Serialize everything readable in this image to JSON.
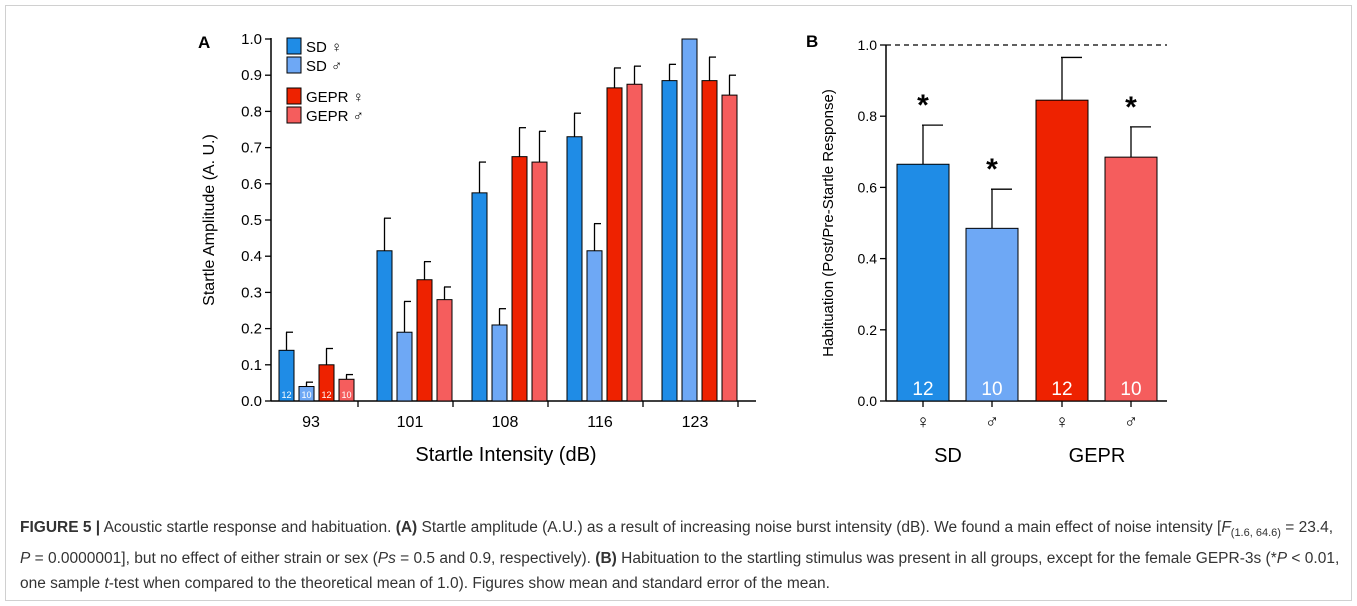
{
  "chart_data": [
    {
      "panel_label": "A",
      "type": "bar",
      "xlabel": "Startle Intensity (dB)",
      "ylabel": "Startle Amplitude (A. U.)",
      "ylim": [
        0,
        1.0
      ],
      "yticks": [
        "0.0",
        "0.1",
        "0.2",
        "0.3",
        "0.4",
        "0.5",
        "0.6",
        "0.7",
        "0.8",
        "0.9",
        "1.0"
      ],
      "categories": [
        "93",
        "101",
        "108",
        "116",
        "123"
      ],
      "legend_position": "top-left",
      "series": [
        {
          "name": "SD ♀",
          "color": "#1f8ce6",
          "values": [
            0.14,
            0.415,
            0.575,
            0.73,
            0.885
          ],
          "errors": [
            0.05,
            0.09,
            0.085,
            0.065,
            0.045
          ],
          "n": "12"
        },
        {
          "name": "SD ♂",
          "color": "#6ea8f5",
          "values": [
            0.04,
            0.19,
            0.21,
            0.415,
            1.0
          ],
          "errors": [
            0.012,
            0.085,
            0.045,
            0.075,
            0.0
          ],
          "n": "10"
        },
        {
          "name": "GEPR ♀",
          "color": "#ee2200",
          "values": [
            0.1,
            0.335,
            0.675,
            0.865,
            0.885
          ],
          "errors": [
            0.045,
            0.05,
            0.08,
            0.055,
            0.065
          ],
          "n": "12"
        },
        {
          "name": "GEPR ♂",
          "color": "#f55d5d",
          "values": [
            0.06,
            0.28,
            0.66,
            0.875,
            0.845
          ],
          "errors": [
            0.013,
            0.035,
            0.085,
            0.05,
            0.055
          ],
          "n": "10"
        }
      ]
    },
    {
      "panel_label": "B",
      "type": "bar",
      "ylabel": "Habituation (Post/Pre-Startle Response)",
      "ylim": [
        0,
        1.0
      ],
      "yticks": [
        "0.0",
        "0.2",
        "0.4",
        "0.6",
        "0.8",
        "1.0"
      ],
      "reference_line": 1.0,
      "categories": [
        "♀",
        "♂",
        "♀",
        "♂"
      ],
      "groups": [
        "SD",
        "GEPR"
      ],
      "colors": [
        "#1f8ce6",
        "#6ea8f5",
        "#ee2200",
        "#f55d5d"
      ],
      "values": [
        0.665,
        0.485,
        0.845,
        0.685
      ],
      "errors": [
        0.11,
        0.11,
        0.12,
        0.085
      ],
      "n": [
        "12",
        "10",
        "12",
        "10"
      ],
      "significance": [
        "*",
        "*",
        "",
        "*"
      ]
    }
  ],
  "caption": {
    "figure_label": "FIGURE 5 |",
    "text1": " Acoustic startle response and habituation. ",
    "a_label": "(A)",
    "text2": " Startle amplitude (A.U.) as a result of increasing noise burst intensity (dB). We found a main effect of noise intensity [",
    "stat_f": "F",
    "stat_df": "(1.6, 64.6)",
    "text3": " = 23.4, ",
    "stat_p": "P",
    "text4": " = 0.0000001], but no effect of either strain or sex (",
    "stat_ps": "Ps",
    "text5": " = 0.5 and 0.9, respectively). ",
    "b_label": "(B)",
    "text6": " Habituation to the startling stimulus was present in all groups, except for the female GEPR-3s (*",
    "stat_p2": "P",
    "text7": " < 0.01, one sample ",
    "stat_t": "t",
    "text8": "-test when compared to the theoretical mean of 1.0). Figures show mean and standard error of the mean."
  }
}
